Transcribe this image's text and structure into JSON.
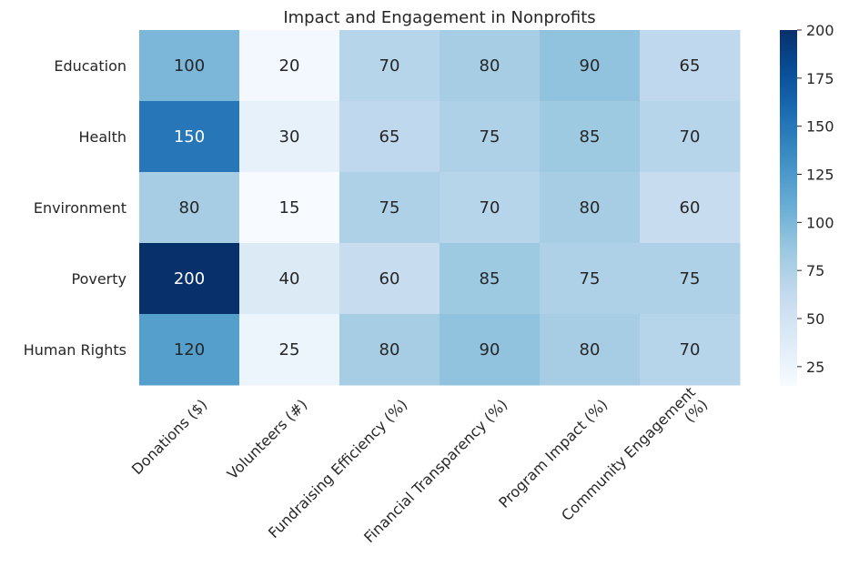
{
  "chart_data": {
    "type": "heatmap",
    "title": "Impact and Engagement in Nonprofits",
    "rows": [
      "Education",
      "Health",
      "Environment",
      "Poverty",
      "Human Rights"
    ],
    "columns": [
      [
        "Donations ($)"
      ],
      [
        "Volunteers (#)"
      ],
      [
        "Fundraising Efficiency (%)"
      ],
      [
        "Financial Transparency (%)"
      ],
      [
        "Program Impact (%)"
      ],
      [
        "Community Engagement",
        "(%)"
      ]
    ],
    "values": [
      [
        100,
        20,
        70,
        80,
        90,
        65
      ],
      [
        150,
        30,
        65,
        75,
        85,
        70
      ],
      [
        80,
        15,
        75,
        70,
        80,
        60
      ],
      [
        200,
        40,
        60,
        85,
        75,
        75
      ],
      [
        120,
        25,
        80,
        90,
        80,
        70
      ]
    ],
    "colormap": "Blues",
    "vmin": 15,
    "vmax": 200,
    "colorbar_ticks": [
      25,
      50,
      75,
      100,
      125,
      150,
      175,
      200
    ],
    "annotations": true
  }
}
